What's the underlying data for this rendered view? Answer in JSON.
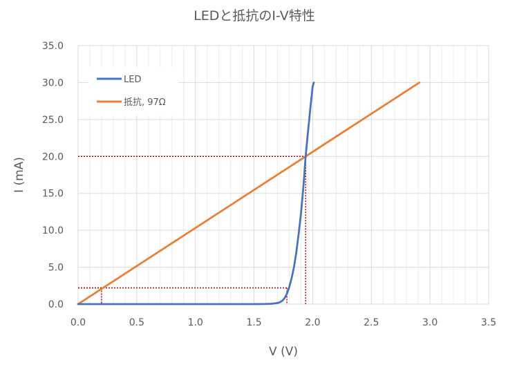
{
  "chart_data": {
    "type": "line",
    "title": "LEDと抵抗のI-V特性",
    "xlabel": "V (V)",
    "ylabel": "I (mA)",
    "xlim": [
      0,
      3.5
    ],
    "ylim": [
      0,
      35
    ],
    "x_ticks": [
      "0.0",
      "0.5",
      "1.0",
      "1.5",
      "2.0",
      "2.5",
      "3.0",
      "3.5"
    ],
    "y_ticks": [
      "0.0",
      "5.0",
      "10.0",
      "15.0",
      "20.0",
      "25.0",
      "30.0",
      "35.0"
    ],
    "grid": "major and minor vertical; major horizontal",
    "legend_position": "top-left",
    "series": [
      {
        "name": "LED",
        "color": "#4472C4",
        "x": [
          0,
          1.5,
          1.6,
          1.65,
          1.7,
          1.72,
          1.74,
          1.76,
          1.78,
          1.8,
          1.82,
          1.84,
          1.86,
          1.88,
          1.9,
          1.92,
          1.94,
          1.96,
          1.98,
          2.0,
          2.01
        ],
        "y": [
          0,
          0,
          0.02,
          0.05,
          0.15,
          0.25,
          0.45,
          0.8,
          1.4,
          2.3,
          3.5,
          5.0,
          7.0,
          9.5,
          12.3,
          15.8,
          20.0,
          23.3,
          26.5,
          29.5,
          30.0
        ]
      },
      {
        "name": "抵抗, 97Ω",
        "color": "#ED7D31",
        "x": [
          0,
          2.91
        ],
        "y": [
          0,
          30
        ]
      }
    ],
    "annotations": {
      "color": "#C00000",
      "style": "dotted",
      "guides": [
        {
          "x": 1.94,
          "y": 20.0
        },
        {
          "x": 1.78,
          "y": 2.2
        },
        {
          "x": 0.2,
          "y": 2.2
        }
      ]
    }
  }
}
